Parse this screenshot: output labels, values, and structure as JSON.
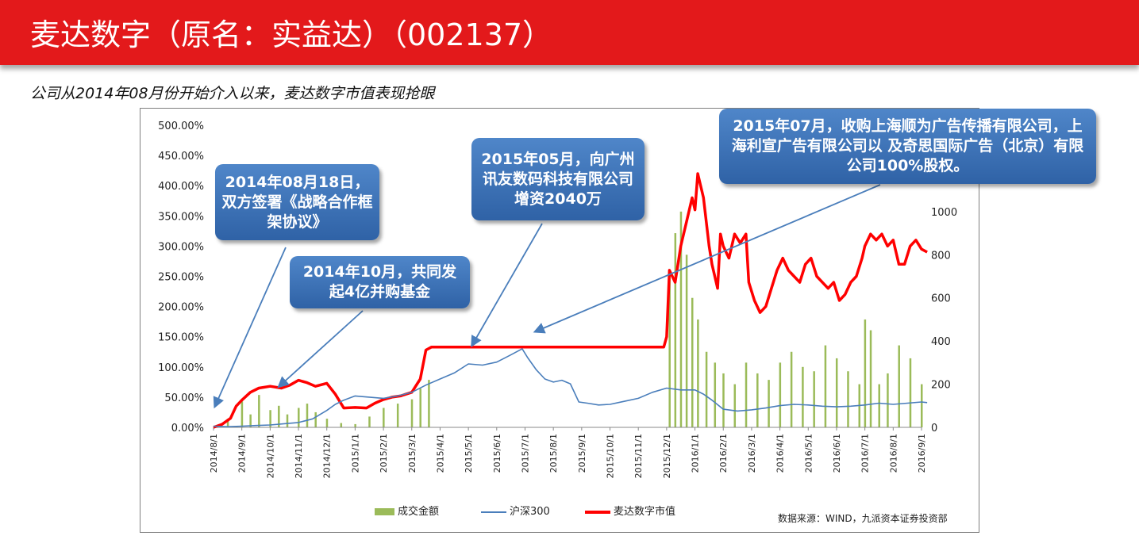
{
  "header": {
    "title": "麦达数字（原名：实益达）（002137）"
  },
  "subtitle": "公司从2014年08月份开始介入以来，麦达数字市值表现抢眼",
  "callouts": {
    "c1": "2014年08月18日，双方签署《战略合作框架协议》",
    "c2": "2014年10月，共同发起4亿并购基金",
    "c3": "2015年05月，向广州讯友数码科技有限公司增资2040万",
    "c4": "2015年07月，收购上海顺为广告传播有限公司，上海利宣广告有限公司以 及奇思国际广告（北京）有限公司100%股权。"
  },
  "source": "数据来源：WIND，九派资本证券投资部",
  "chart_data": {
    "type": "line",
    "x_tick_labels": [
      "2014/8/1",
      "2014/9/1",
      "2014/10/1",
      "2014/11/1",
      "2014/12/1",
      "2015/1/1",
      "2015/2/1",
      "2015/3/1",
      "2015/4/1",
      "2015/5/1",
      "2015/6/1",
      "2015/7/1",
      "2015/8/1",
      "2015/9/1",
      "2015/10/1",
      "2015/11/1",
      "2015/12/1",
      "2016/1/1",
      "2016/2/1",
      "2016/3/1",
      "2016/4/1",
      "2016/5/1",
      "2016/6/1",
      "2016/7/1",
      "2016/8/1",
      "2016/9/1"
    ],
    "y_left_ticks": [
      "0.00%",
      "50.00%",
      "100.00%",
      "150.00%",
      "200.00%",
      "250.00%",
      "300.00%",
      "350.00%",
      "400.00%",
      "450.00%",
      "500.00%"
    ],
    "y_left_range": [
      0,
      500
    ],
    "y_right_ticks": [
      "0",
      "200",
      "400",
      "600",
      "800",
      "1000"
    ],
    "y_right_range": [
      0,
      1400
    ],
    "series": [
      {
        "name": "麦达数字市值",
        "axis": "left",
        "color": "#ff0000",
        "points": [
          [
            0.0,
            0
          ],
          [
            0.3,
            5
          ],
          [
            0.6,
            15
          ],
          [
            0.8,
            35
          ],
          [
            1.0,
            45
          ],
          [
            1.3,
            58
          ],
          [
            1.6,
            65
          ],
          [
            2.0,
            68
          ],
          [
            2.4,
            65
          ],
          [
            2.7,
            70
          ],
          [
            3.0,
            78
          ],
          [
            3.3,
            74
          ],
          [
            3.6,
            68
          ],
          [
            4.0,
            73
          ],
          [
            4.3,
            55
          ],
          [
            4.6,
            32
          ],
          [
            5.0,
            33
          ],
          [
            5.4,
            32
          ],
          [
            5.7,
            40
          ],
          [
            6.0,
            46
          ],
          [
            6.3,
            50
          ],
          [
            6.6,
            52
          ],
          [
            7.0,
            58
          ],
          [
            7.3,
            80
          ],
          [
            7.5,
            128
          ],
          [
            7.7,
            133
          ],
          [
            8.5,
            133
          ],
          [
            9.5,
            133
          ],
          [
            10.5,
            133
          ],
          [
            11.5,
            133
          ],
          [
            12.5,
            133
          ],
          [
            13.5,
            133
          ],
          [
            14.5,
            133
          ],
          [
            15.5,
            133
          ],
          [
            15.9,
            133
          ],
          [
            16.0,
            150
          ],
          [
            16.1,
            260
          ],
          [
            16.3,
            240
          ],
          [
            16.5,
            300
          ],
          [
            16.7,
            340
          ],
          [
            16.9,
            380
          ],
          [
            17.0,
            360
          ],
          [
            17.1,
            420
          ],
          [
            17.3,
            380
          ],
          [
            17.5,
            300
          ],
          [
            17.6,
            270
          ],
          [
            17.8,
            230
          ],
          [
            17.9,
            320
          ],
          [
            18.0,
            300
          ],
          [
            18.2,
            280
          ],
          [
            18.4,
            320
          ],
          [
            18.6,
            305
          ],
          [
            18.8,
            320
          ],
          [
            18.9,
            240
          ],
          [
            19.1,
            210
          ],
          [
            19.3,
            190
          ],
          [
            19.5,
            200
          ],
          [
            19.7,
            230
          ],
          [
            19.9,
            260
          ],
          [
            20.1,
            280
          ],
          [
            20.3,
            260
          ],
          [
            20.5,
            250
          ],
          [
            20.7,
            240
          ],
          [
            20.9,
            270
          ],
          [
            21.1,
            280
          ],
          [
            21.3,
            250
          ],
          [
            21.5,
            240
          ],
          [
            21.7,
            230
          ],
          [
            21.9,
            240
          ],
          [
            22.1,
            210
          ],
          [
            22.3,
            220
          ],
          [
            22.5,
            240
          ],
          [
            22.7,
            250
          ],
          [
            22.9,
            280
          ],
          [
            23.0,
            300
          ],
          [
            23.2,
            320
          ],
          [
            23.4,
            310
          ],
          [
            23.6,
            320
          ],
          [
            23.8,
            300
          ],
          [
            24.0,
            310
          ],
          [
            24.2,
            270
          ],
          [
            24.4,
            270
          ],
          [
            24.6,
            300
          ],
          [
            24.8,
            310
          ],
          [
            25.0,
            295
          ],
          [
            25.2,
            290
          ]
        ]
      },
      {
        "name": "沪深300",
        "axis": "left",
        "color": "#4a7ebb",
        "points": [
          [
            0.0,
            2
          ],
          [
            0.5,
            1
          ],
          [
            1.0,
            2
          ],
          [
            1.5,
            3
          ],
          [
            2.0,
            4
          ],
          [
            2.5,
            6
          ],
          [
            3.0,
            8
          ],
          [
            3.5,
            14
          ],
          [
            4.0,
            28
          ],
          [
            4.3,
            38
          ],
          [
            4.6,
            45
          ],
          [
            5.0,
            52
          ],
          [
            5.5,
            50
          ],
          [
            6.0,
            48
          ],
          [
            6.5,
            52
          ],
          [
            7.0,
            58
          ],
          [
            7.5,
            70
          ],
          [
            8.0,
            80
          ],
          [
            8.5,
            90
          ],
          [
            9.0,
            105
          ],
          [
            9.5,
            103
          ],
          [
            10.0,
            108
          ],
          [
            10.5,
            120
          ],
          [
            10.9,
            130
          ],
          [
            11.1,
            115
          ],
          [
            11.4,
            95
          ],
          [
            11.7,
            80
          ],
          [
            12.0,
            75
          ],
          [
            12.3,
            78
          ],
          [
            12.6,
            72
          ],
          [
            12.9,
            42
          ],
          [
            13.2,
            40
          ],
          [
            13.6,
            37
          ],
          [
            14.0,
            38
          ],
          [
            14.5,
            43
          ],
          [
            15.0,
            48
          ],
          [
            15.5,
            58
          ],
          [
            16.0,
            65
          ],
          [
            16.5,
            62
          ],
          [
            17.0,
            62
          ],
          [
            17.3,
            55
          ],
          [
            17.6,
            45
          ],
          [
            18.0,
            30
          ],
          [
            18.5,
            27
          ],
          [
            19.0,
            29
          ],
          [
            19.5,
            32
          ],
          [
            20.0,
            36
          ],
          [
            20.5,
            38
          ],
          [
            21.0,
            37
          ],
          [
            21.5,
            35
          ],
          [
            22.0,
            34
          ],
          [
            22.5,
            35
          ],
          [
            23.0,
            37
          ],
          [
            23.5,
            40
          ],
          [
            24.0,
            38
          ],
          [
            24.5,
            40
          ],
          [
            25.0,
            42
          ],
          [
            25.2,
            41
          ]
        ]
      }
    ],
    "bars": {
      "name": "成交金额",
      "axis": "right",
      "color": "#9bbb59",
      "values": [
        [
          0.5,
          40
        ],
        [
          1.0,
          120
        ],
        [
          1.3,
          60
        ],
        [
          1.6,
          150
        ],
        [
          2.0,
          80
        ],
        [
          2.3,
          100
        ],
        [
          2.6,
          60
        ],
        [
          3.0,
          90
        ],
        [
          3.3,
          110
        ],
        [
          3.6,
          70
        ],
        [
          4.0,
          40
        ],
        [
          4.5,
          20
        ],
        [
          5.0,
          15
        ],
        [
          5.5,
          50
        ],
        [
          6.0,
          90
        ],
        [
          6.5,
          110
        ],
        [
          7.0,
          130
        ],
        [
          7.3,
          180
        ],
        [
          7.6,
          220
        ],
        [
          16.1,
          700
        ],
        [
          16.3,
          900
        ],
        [
          16.5,
          1000
        ],
        [
          16.7,
          800
        ],
        [
          16.9,
          600
        ],
        [
          17.1,
          500
        ],
        [
          17.4,
          350
        ],
        [
          17.7,
          300
        ],
        [
          18.0,
          250
        ],
        [
          18.4,
          200
        ],
        [
          18.8,
          300
        ],
        [
          19.2,
          250
        ],
        [
          19.6,
          220
        ],
        [
          20.0,
          300
        ],
        [
          20.4,
          350
        ],
        [
          20.8,
          280
        ],
        [
          21.2,
          260
        ],
        [
          21.6,
          380
        ],
        [
          22.0,
          320
        ],
        [
          22.4,
          260
        ],
        [
          22.8,
          200
        ],
        [
          23.0,
          500
        ],
        [
          23.2,
          450
        ],
        [
          23.5,
          200
        ],
        [
          23.8,
          250
        ],
        [
          24.2,
          380
        ],
        [
          24.6,
          320
        ],
        [
          25.0,
          200
        ]
      ]
    }
  },
  "legend": {
    "bars": "成交金额",
    "line1": "沪深300",
    "line2": "麦达数字市值"
  }
}
